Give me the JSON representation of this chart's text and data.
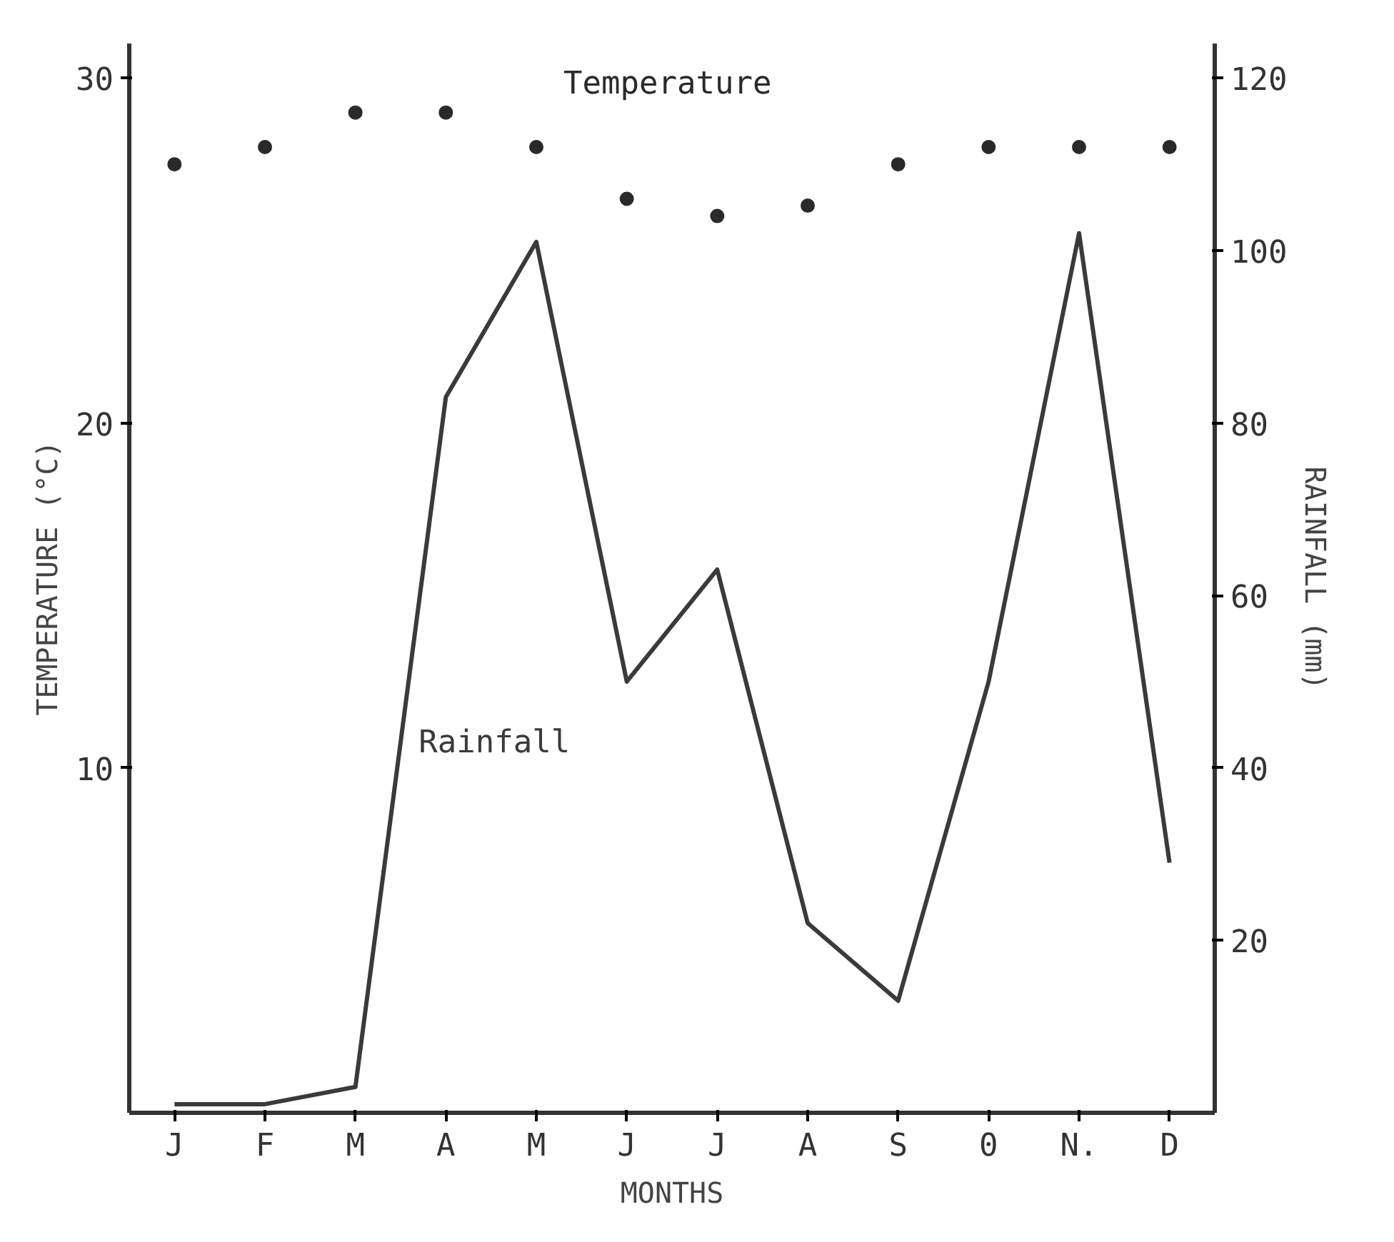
{
  "chart_data": {
    "type": "line",
    "xlabel": "MONTHS",
    "ylabel": "TEMPERATURE (°C)",
    "y2label": "RAINFALL (mm)",
    "categories": [
      "J",
      "F",
      "M",
      "A",
      "M",
      "J",
      "J",
      "A",
      "S",
      "0",
      "N.",
      "D"
    ],
    "series": [
      {
        "name": "Temperature",
        "type": "scatter",
        "color": "#2a2a2a",
        "marker": "circle",
        "values": [
          27.5,
          28,
          29,
          29,
          28,
          26.5,
          26,
          26.3,
          27.5,
          28,
          28,
          28
        ]
      },
      {
        "name": "Rainfall",
        "color": "#3a3a3a",
        "axis": "y2",
        "values": [
          1,
          1,
          3,
          83,
          101,
          50,
          63,
          22,
          13,
          50,
          102,
          29
        ]
      }
    ],
    "ylim": [
      0,
      31
    ],
    "yticks": [
      10,
      20,
      30
    ],
    "y2lim": [
      0,
      124
    ],
    "y2ticks": [
      20,
      40,
      60,
      80,
      100,
      120
    ],
    "grid": false
  }
}
